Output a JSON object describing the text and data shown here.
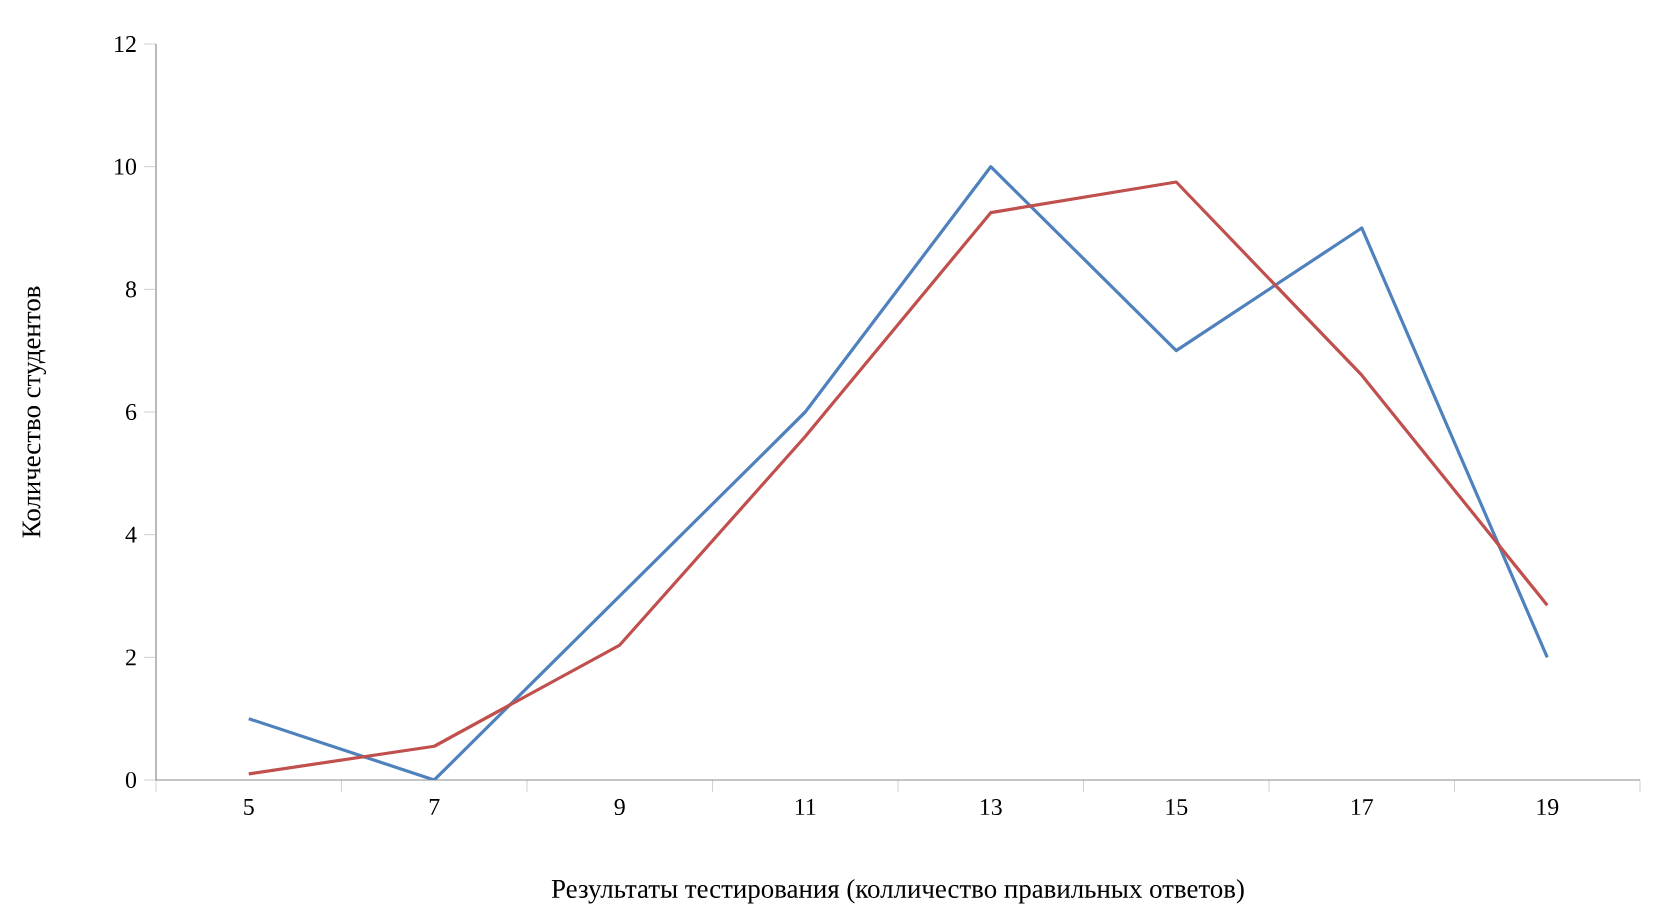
{
  "chart_data": {
    "type": "line",
    "xlabel": "Результаты тестирования (колличество правильных ответов)",
    "ylabel": "Количество студентов",
    "categories": [
      "5",
      "7",
      "9",
      "11",
      "13",
      "15",
      "17",
      "19"
    ],
    "series": [
      {
        "color": "#4f81bd",
        "values": [
          1,
          0,
          3,
          6,
          10,
          7,
          9,
          2
        ]
      },
      {
        "color": "#c0504d",
        "values": [
          0.1,
          0.55,
          2.2,
          5.6,
          9.25,
          9.75,
          6.6,
          2.85
        ]
      }
    ],
    "ylim": [
      0,
      12
    ],
    "yticks": [
      0,
      2,
      4,
      6,
      8,
      10,
      12
    ],
    "grid": false,
    "marker": "none",
    "line_style": "solid"
  }
}
